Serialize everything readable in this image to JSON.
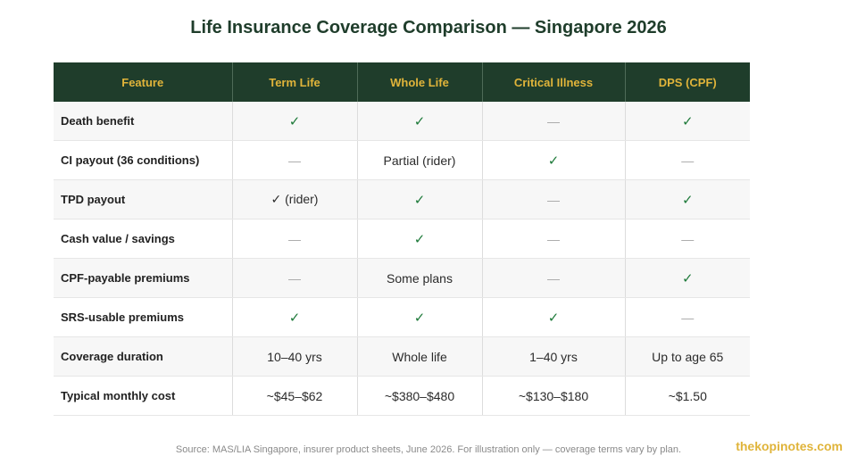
{
  "chart_data": {
    "type": "table",
    "title": "Life Insurance Coverage Comparison — Singapore 2026",
    "columns": [
      "Feature",
      "Term Life",
      "Whole Life",
      "Critical Illness",
      "DPS (CPF)"
    ],
    "rows": [
      {
        "feature": "Death benefit",
        "values": [
          "✓",
          "✓",
          "—",
          "✓"
        ]
      },
      {
        "feature": "CI payout (36 conditions)",
        "values": [
          "—",
          "Partial (rider)",
          "✓",
          "—"
        ]
      },
      {
        "feature": "TPD payout",
        "values": [
          "✓ (rider)",
          "✓",
          "—",
          "✓"
        ]
      },
      {
        "feature": "Cash value / savings",
        "values": [
          "—",
          "✓",
          "—",
          "—"
        ]
      },
      {
        "feature": "CPF-payable premiums",
        "values": [
          "—",
          "Some plans",
          "—",
          "✓"
        ]
      },
      {
        "feature": "SRS-usable premiums",
        "values": [
          "✓",
          "✓",
          "✓",
          "—"
        ]
      },
      {
        "feature": "Coverage duration",
        "values": [
          "10–40 yrs",
          "Whole life",
          "1–40 yrs",
          "Up to age 65"
        ]
      },
      {
        "feature": "Typical monthly cost",
        "values": [
          "~$45–$62",
          "~$380–$480",
          "~$130–$180",
          "~$1.50"
        ]
      }
    ],
    "source": "Source: MAS/LIA Singapore, insurer product sheets, June 2026. For illustration only — coverage terms vary by plan."
  },
  "brand": "thekopinotes.com",
  "colors": {
    "header_bg": "#1f3d2b",
    "header_text": "#e0b43a",
    "title": "#1f3d2b",
    "check": "#1e7a3a",
    "dash": "#a8a8a8",
    "brand": "#e0b43a"
  }
}
